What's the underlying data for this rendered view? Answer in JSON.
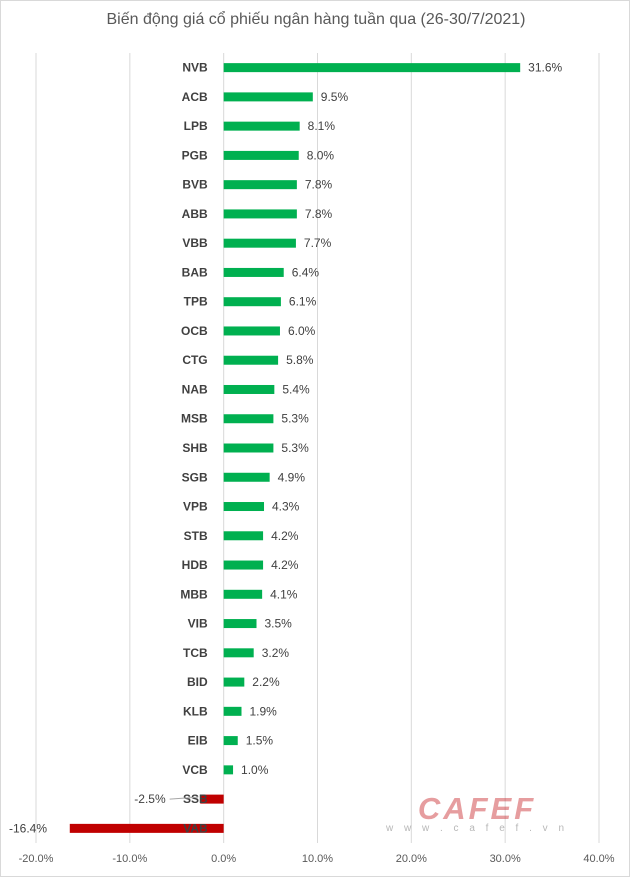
{
  "chart_data": {
    "type": "bar",
    "orientation": "horizontal",
    "title": "Biến động giá cổ phiếu ngân hàng tuần qua (26-30/7/2021)",
    "categories": [
      "NVB",
      "ACB",
      "LPB",
      "PGB",
      "BVB",
      "ABB",
      "VBB",
      "BAB",
      "TPB",
      "OCB",
      "CTG",
      "NAB",
      "MSB",
      "SHB",
      "SGB",
      "VPB",
      "STB",
      "HDB",
      "MBB",
      "VIB",
      "TCB",
      "BID",
      "KLB",
      "EIB",
      "VCB",
      "SSB",
      "VAB"
    ],
    "values": [
      31.6,
      9.5,
      8.1,
      8.0,
      7.8,
      7.8,
      7.7,
      6.4,
      6.1,
      6.0,
      5.8,
      5.4,
      5.3,
      5.3,
      4.9,
      4.3,
      4.2,
      4.2,
      4.1,
      3.5,
      3.2,
      2.2,
      1.9,
      1.5,
      1.0,
      -2.5,
      -16.4
    ],
    "value_labels": [
      "31.6%",
      "9.5%",
      "8.1%",
      "8.0%",
      "7.8%",
      "7.8%",
      "7.7%",
      "6.4%",
      "6.1%",
      "6.0%",
      "5.8%",
      "5.4%",
      "5.3%",
      "5.3%",
      "4.9%",
      "4.3%",
      "4.2%",
      "4.2%",
      "4.1%",
      "3.5%",
      "3.2%",
      "2.2%",
      "1.9%",
      "1.5%",
      "1.0%",
      "-2.5%",
      "-16.4%"
    ],
    "xlim": [
      -20,
      40
    ],
    "xticks": [
      -20,
      -10,
      0,
      10,
      20,
      30,
      40
    ],
    "xtick_labels": [
      "-20.0%",
      "-10.0%",
      "0.0%",
      "10.0%",
      "20.0%",
      "30.0%",
      "40.0%"
    ],
    "grid": true,
    "colors": {
      "positive": "#00b050",
      "negative": "#c00000"
    }
  },
  "watermark": {
    "logo": "CAFEF",
    "url": "w w w . c a f e f . v n"
  }
}
